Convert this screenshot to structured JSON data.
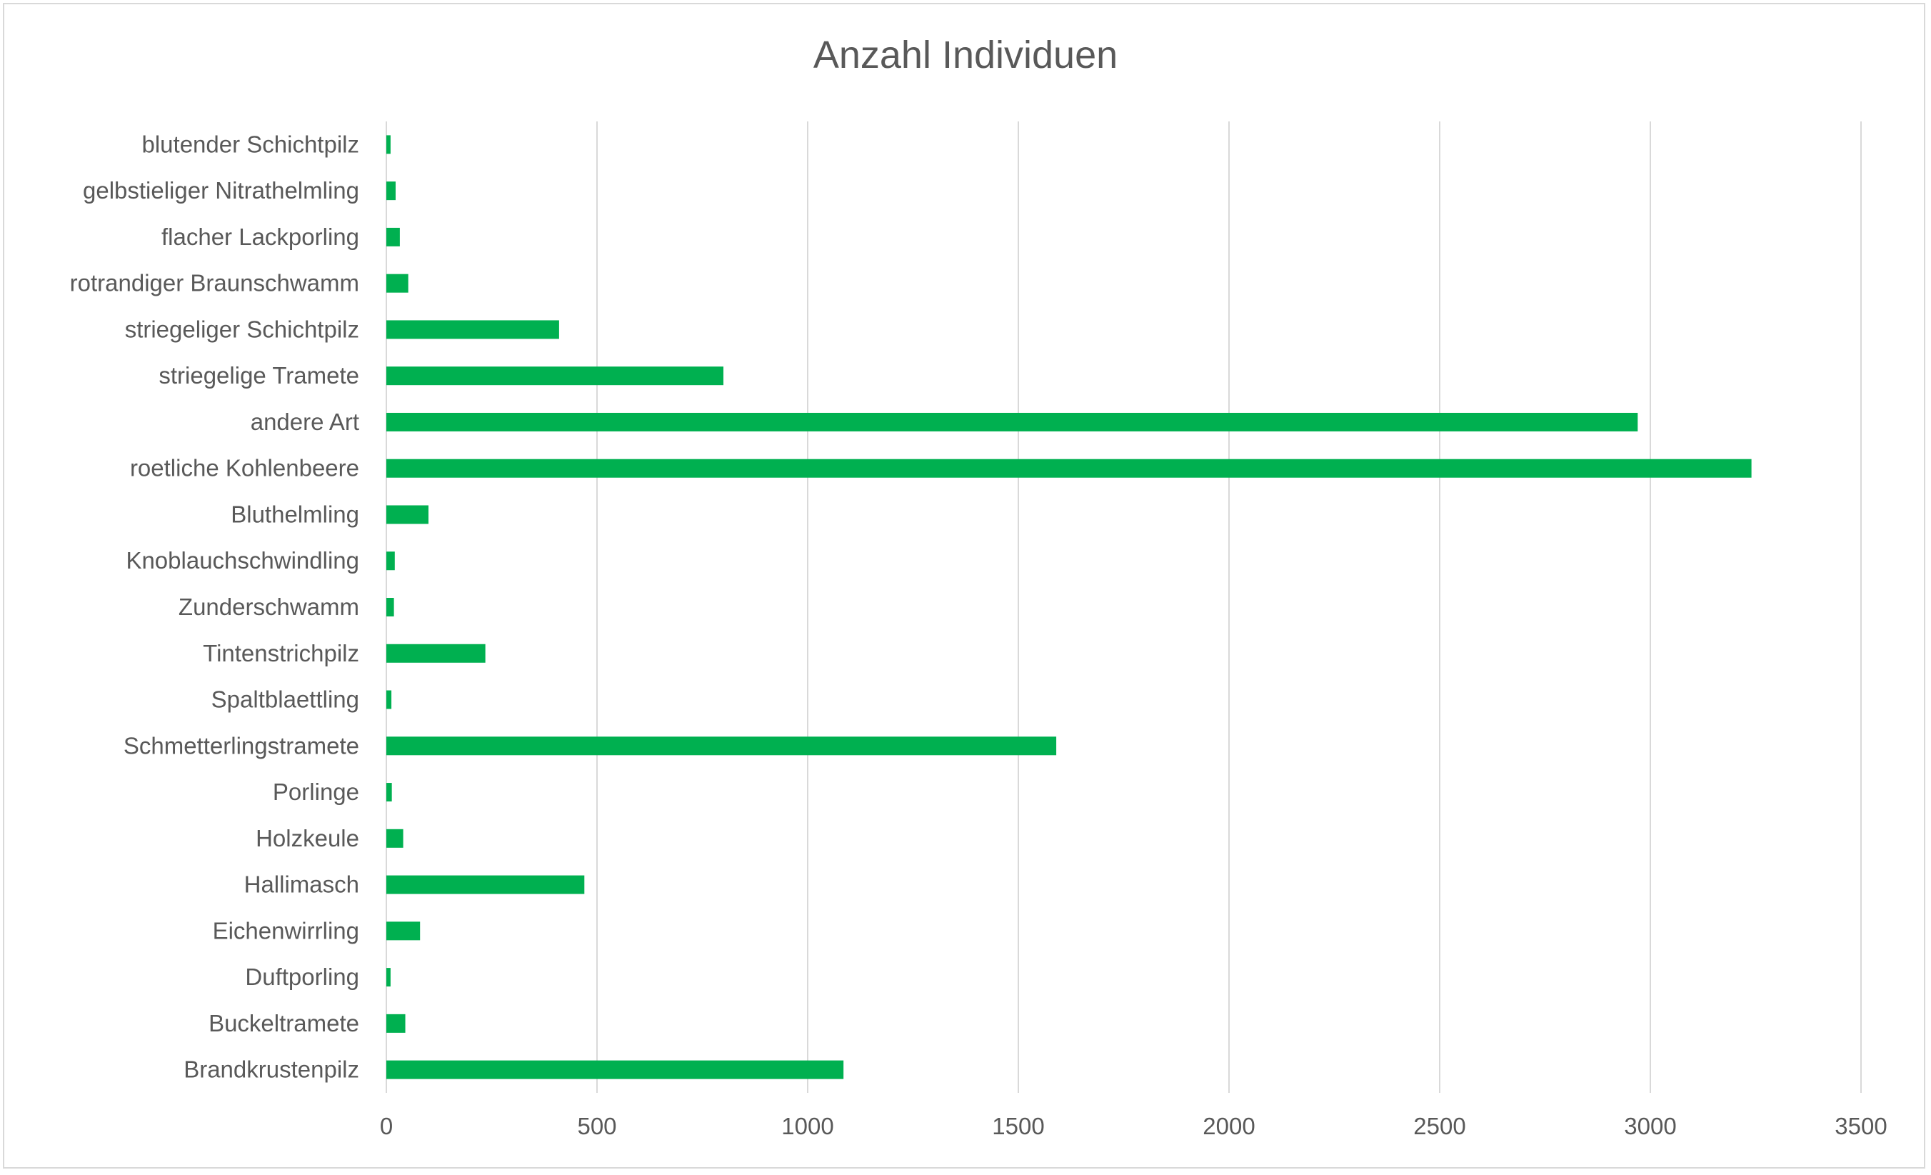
{
  "chart_data": {
    "type": "bar",
    "orientation": "horizontal",
    "title": "Anzahl Individuen",
    "xlabel": "",
    "ylabel": "",
    "xlim": [
      0,
      3500
    ],
    "x_ticks": [
      0,
      500,
      1000,
      1500,
      2000,
      2500,
      3000,
      3500
    ],
    "grid": "vertical major gridlines",
    "legend": "none",
    "bar_color": "#00b050",
    "gridline_color": "#d9d9d9",
    "text_color": "#595959",
    "categories": [
      "Brandkrustenpilz",
      "Buckeltramete",
      "Duftporling",
      "Eichenwirrling",
      "Hallimasch",
      "Holzkeule",
      "Porlinge",
      "Schmetterlingstramete",
      "Spaltblaettling",
      "Tintenstrichpilz",
      "Zunderschwamm",
      "Knoblauchschwindling",
      "Bluthelmling",
      "roetliche Kohlenbeere",
      "andere Art",
      "striegelige Tramete",
      "striegeliger Schichtpilz",
      "rotrandiger Braunschwamm",
      "flacher Lackporling",
      "gelbstieliger Nitrathelmling",
      "blutender Schichtpilz"
    ],
    "values": [
      1085,
      45,
      10,
      80,
      470,
      40,
      13,
      1590,
      12,
      235,
      18,
      20,
      100,
      3240,
      2970,
      800,
      410,
      52,
      32,
      22,
      10
    ]
  }
}
